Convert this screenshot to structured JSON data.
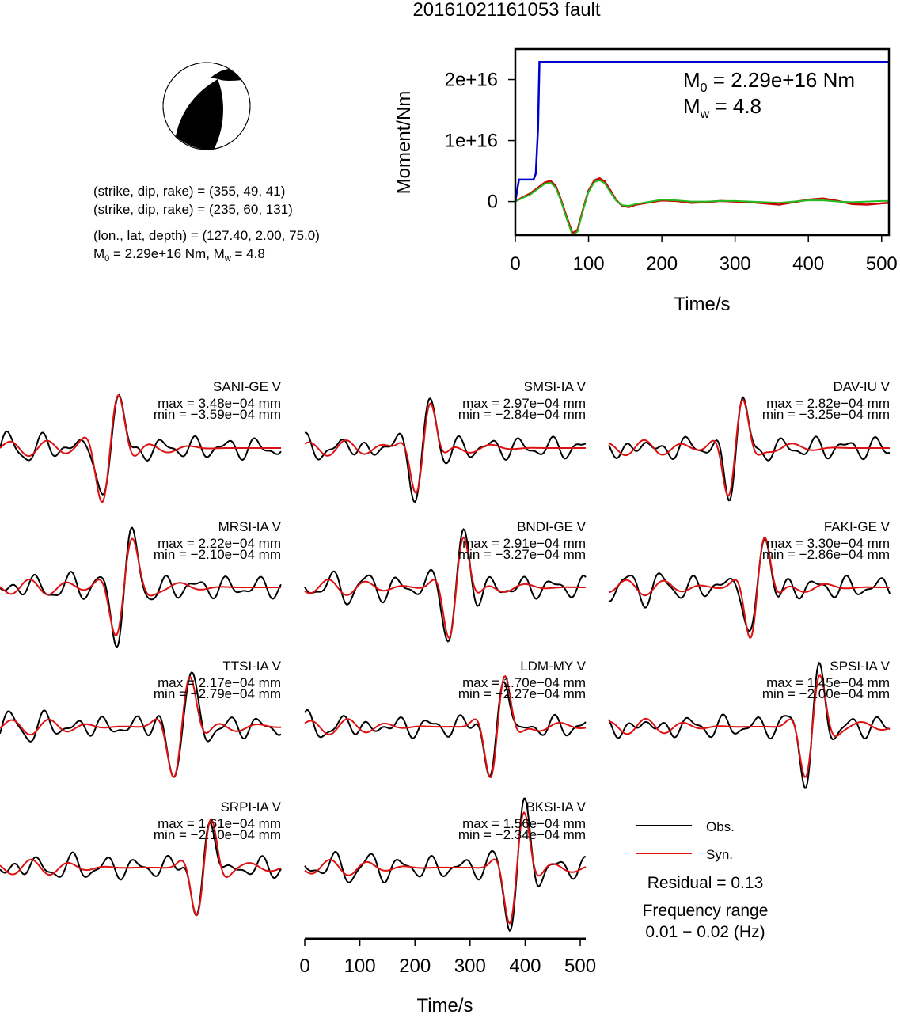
{
  "title": "20161021161053 fault",
  "mechanism": {
    "line1": "(strike, dip, rake) = (355, 49, 41)",
    "line2": "(strike, dip, rake) = (235, 60, 131)",
    "line3": "(lon., lat, depth) = (127.40, 2.00, 75.0)",
    "line4_m0_prefix": "M",
    "line4_m0_sub": "0",
    "line4_m0_value": " = 2.29e+16 Nm, M",
    "line4_mw_sub": "w",
    "line4_mw_value": " = 4.8"
  },
  "moment_panel": {
    "m0_label": "M",
    "m0_sub": "0",
    "m0_value": " = 2.29e+16 Nm",
    "mw_label": "M",
    "mw_sub": "w",
    "mw_value": " = 4.8",
    "colors": {
      "moment": "#0000cc",
      "synthetic": "#cc0000",
      "observed": "#22bb22"
    }
  },
  "chart_data": [
    {
      "type": "line",
      "ylabel": "Moment/Nm",
      "xlabel": "Time/s",
      "xlim": [
        0,
        510
      ],
      "ylim": [
        -5500000000000000,
        25000000000000000
      ],
      "xticks": [
        0,
        100,
        200,
        300,
        400,
        500
      ],
      "yticks": [
        0,
        10000000000000000,
        20000000000000000
      ],
      "ytick_labels": [
        "0",
        "1e+16",
        "2e+16"
      ],
      "series": [
        {
          "x": [
            0,
            5,
            10,
            20,
            25,
            28,
            31,
            33,
            36,
            40,
            100,
            200,
            300,
            400,
            510
          ],
          "y": [
            0,
            3600000000000000,
            3600000000000000,
            3600000000000000,
            3600000000000000,
            4600000000000000,
            12000000000000000,
            22900000000000000,
            22900000000000000,
            22900000000000000,
            22900000000000000,
            22900000000000000,
            22900000000000000,
            22900000000000000,
            22900000000000000
          ]
        },
        {
          "x": [
            0,
            10,
            20,
            30,
            40,
            48,
            55,
            62,
            70,
            78,
            85,
            92,
            100,
            108,
            115,
            122,
            130,
            138,
            146,
            155,
            165,
            180,
            200,
            220,
            240,
            260,
            280,
            300,
            320,
            340,
            360,
            380,
            400,
            420,
            440,
            460,
            480,
            500,
            510
          ],
          "y": [
            0,
            700000000000000,
            1300000000000000,
            2200000000000000,
            3100000000000000,
            3400000000000000,
            2600000000000000,
            400000000000000,
            -2500000000000000,
            -5200000000000000,
            -4600000000000000,
            -1500000000000000,
            1800000000000000,
            3500000000000000,
            3800000000000000,
            3300000000000000,
            1800000000000000,
            200000000000000,
            -700000000000000,
            -900000000000000,
            -500000000000000,
            -200000000000000,
            200000000000000,
            100000000000000,
            -200000000000000,
            -100000000000000,
            100000000000000,
            0,
            -100000000000000,
            -300000000000000,
            -500000000000000,
            -100000000000000,
            300000000000000,
            500000000000000,
            100000000000000,
            -400000000000000,
            -500000000000000,
            -300000000000000,
            -200000000000000
          ]
        },
        {
          "x": [
            0,
            10,
            20,
            30,
            40,
            48,
            55,
            62,
            70,
            78,
            85,
            92,
            100,
            108,
            115,
            122,
            130,
            138,
            146,
            155,
            165,
            180,
            200,
            220,
            240,
            260,
            280,
            300,
            320,
            340,
            360,
            380,
            400,
            420,
            440,
            460,
            480,
            500,
            510
          ],
          "y": [
            0,
            600000000000000,
            1100000000000000,
            2000000000000000,
            2900000000000000,
            3100000000000000,
            2300000000000000,
            200000000000000,
            -2800000000000000,
            -5500000000000000,
            -4900000000000000,
            -1700000000000000,
            1600000000000000,
            3200000000000000,
            3500000000000000,
            3000000000000000,
            1500000000000000,
            100000000000000,
            -600000000000000,
            -700000000000000,
            -400000000000000,
            -100000000000000,
            300000000000000,
            200000000000000,
            0,
            0,
            100000000000000,
            100000000000000,
            0,
            -100000000000000,
            -200000000000000,
            0,
            200000000000000,
            200000000000000,
            0,
            -100000000000000,
            0,
            100000000000000,
            100000000000000
          ]
        }
      ]
    },
    {
      "type": "line",
      "xlabel": "Time/s",
      "xlim": [
        0,
        510
      ],
      "xticks": [
        0,
        100,
        200,
        300,
        400,
        500
      ],
      "panels": [
        {
          "station": "SANI-GE V",
          "max": "max = 3.48e−04 mm",
          "min": "min = −3.59e−04 mm",
          "t0": 200,
          "width": 18,
          "amp": 1.0
        },
        {
          "station": "SMSI-IA V",
          "max": "max = 2.97e−04 mm",
          "min": "min = −2.84e−04 mm",
          "t0": 215,
          "width": 16,
          "amp": 0.85
        },
        {
          "station": "DAV-IU V",
          "max": "max = 2.82e−04 mm",
          "min": "min = −3.25e−04 mm",
          "t0": 230,
          "width": 16,
          "amp": 0.9
        },
        {
          "station": "MRSI-IA V",
          "max": "max = 2.22e−04 mm",
          "min": "min = −2.10e−04 mm",
          "t0": 225,
          "width": 18,
          "amp": 0.9
        },
        {
          "station": "BNDI-GE V",
          "max": "max = 2.91e−04 mm",
          "min": "min = −3.27e−04 mm",
          "t0": 275,
          "width": 16,
          "amp": 0.95
        },
        {
          "station": "FAKI-GE V",
          "max": "max = 3.30e−04 mm",
          "min": "min = −2.86e−04 mm",
          "t0": 270,
          "width": 16,
          "amp": 0.95
        },
        {
          "station": "TTSI-IA V",
          "max": "max = 2.17e−04 mm",
          "min": "min = −2.79e−04 mm",
          "t0": 330,
          "width": 18,
          "amp": 0.95
        },
        {
          "station": "LDM-MY V",
          "max": "max = 1.70e−04 mm",
          "min": "min = −2.27e−04 mm",
          "t0": 350,
          "width": 16,
          "amp": 0.95
        },
        {
          "station": "SPSI-IA V",
          "max": "max = 1.45e−04 mm",
          "min": "min = −2.00e−04 mm",
          "t0": 370,
          "width": 16,
          "amp": 0.95
        },
        {
          "station": "SRPI-IA V",
          "max": "max = 1.61e−04 mm",
          "min": "min = −2.10e−04 mm",
          "t0": 370,
          "width": 16,
          "amp": 0.9
        },
        {
          "station": "BKSI-IA V",
          "max": "max = 1.56e−04 mm",
          "min": "min = −2.34e−04 mm",
          "t0": 385,
          "width": 16,
          "amp": 1.05
        }
      ]
    }
  ],
  "legend": {
    "obs_label": "Obs.",
    "syn_label": "Syn.",
    "obs_color": "#000000",
    "syn_color": "#dd1111"
  },
  "residual": "Residual = 0.13",
  "freq_title": "Frequency range",
  "freq_value": "0.01 − 0.02 (Hz)"
}
